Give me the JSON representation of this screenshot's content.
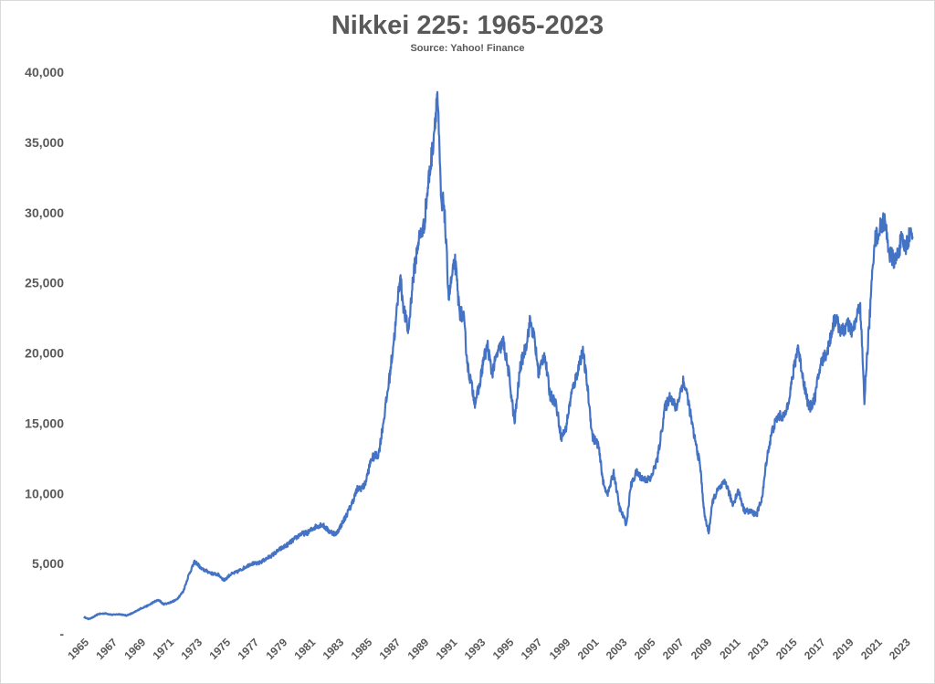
{
  "chart_data": {
    "type": "line",
    "title": "Nikkei 225: 1965-2023",
    "subtitle": "Source: Yahoo! Finance",
    "xlabel": "",
    "ylabel": "",
    "xlim": [
      1965,
      2023.6
    ],
    "ylim": [
      0,
      40000
    ],
    "yticks": [
      0,
      5000,
      10000,
      15000,
      20000,
      25000,
      30000,
      35000,
      40000
    ],
    "ytick_labels": [
      "-",
      "5,000",
      "10,000",
      "15,000",
      "20,000",
      "25,000",
      "30,000",
      "35,000",
      "40,000"
    ],
    "xtick_labels": [
      "1965",
      "1967",
      "1969",
      "1971",
      "1973",
      "1975",
      "1977",
      "1979",
      "1981",
      "1983",
      "1985",
      "1987",
      "1989",
      "1991",
      "1993",
      "1995",
      "1997",
      "1999",
      "2001",
      "2003",
      "2005",
      "2007",
      "2009",
      "2011",
      "2013",
      "2015",
      "2017",
      "2019",
      "2021",
      "2023"
    ],
    "grid": false,
    "legend": "none",
    "line_color": "#4472c4",
    "series": [
      {
        "x": [
          1965.0,
          1965.3,
          1965.6,
          1966.0,
          1966.5,
          1967.0,
          1967.5,
          1968.0,
          1968.5,
          1969.0,
          1969.5,
          1970.0,
          1970.3,
          1970.6,
          1971.0,
          1971.5,
          1972.0,
          1972.4,
          1972.8,
          1973.0,
          1973.3,
          1973.6,
          1974.0,
          1974.5,
          1974.9,
          1975.3,
          1975.8,
          1976.3,
          1976.8,
          1977.3,
          1977.8,
          1978.3,
          1978.8,
          1979.3,
          1979.8,
          1980.3,
          1980.8,
          1981.3,
          1981.8,
          1982.3,
          1982.8,
          1983.3,
          1983.8,
          1984.3,
          1984.8,
          1985.3,
          1985.8,
          1986.2,
          1986.6,
          1987.0,
          1987.3,
          1987.6,
          1987.9,
          1988.2,
          1988.6,
          1989.0,
          1989.3,
          1989.6,
          1989.8,
          1989.95,
          1990.1,
          1990.25,
          1990.4,
          1990.6,
          1990.75,
          1991.0,
          1991.2,
          1991.5,
          1991.8,
          1992.1,
          1992.4,
          1992.6,
          1992.9,
          1993.2,
          1993.5,
          1993.8,
          1994.2,
          1994.6,
          1995.0,
          1995.4,
          1995.8,
          1996.2,
          1996.5,
          1996.8,
          1997.1,
          1997.5,
          1997.9,
          1998.3,
          1998.7,
          1999.0,
          1999.4,
          1999.8,
          2000.2,
          2000.5,
          2000.9,
          2001.3,
          2001.7,
          2002.0,
          2002.4,
          2002.8,
          2003.3,
          2003.6,
          2004.0,
          2004.5,
          2005.0,
          2005.5,
          2006.0,
          2006.4,
          2006.8,
          2007.3,
          2007.6,
          2008.0,
          2008.5,
          2008.8,
          2009.1,
          2009.4,
          2009.8,
          2010.3,
          2010.8,
          2011.2,
          2011.6,
          2012.0,
          2012.5,
          2012.9,
          2013.2,
          2013.6,
          2014.0,
          2014.5,
          2014.9,
          2015.4,
          2015.8,
          2016.2,
          2016.6,
          2017.0,
          2017.5,
          2018.0,
          2018.5,
          2018.9,
          2019.3,
          2019.8,
          2020.1,
          2020.2,
          2020.5,
          2020.8,
          2021.1,
          2021.5,
          2021.9,
          2022.3,
          2022.7,
          2023.0,
          2023.3,
          2023.5
        ],
        "values": [
          1200,
          1050,
          1150,
          1400,
          1450,
          1350,
          1400,
          1300,
          1500,
          1800,
          2000,
          2300,
          2400,
          2100,
          2200,
          2400,
          3000,
          4200,
          5100,
          5000,
          4600,
          4500,
          4300,
          4200,
          3800,
          4200,
          4400,
          4700,
          5000,
          5000,
          5300,
          5600,
          6000,
          6300,
          6700,
          7100,
          7200,
          7600,
          7800,
          7300,
          7100,
          8000,
          9000,
          10300,
          10500,
          12500,
          12800,
          15500,
          18500,
          22000,
          25500,
          23000,
          21500,
          25000,
          28000,
          29000,
          32000,
          34500,
          36800,
          38600,
          34000,
          30000,
          31000,
          27000,
          24000,
          25500,
          26500,
          23000,
          22500,
          19000,
          17500,
          16500,
          17500,
          19500,
          20500,
          18500,
          20000,
          20800,
          18500,
          15000,
          19000,
          20500,
          22300,
          21000,
          18500,
          20000,
          17000,
          16500,
          14000,
          14500,
          17000,
          18500,
          20200,
          18000,
          14000,
          13500,
          10500,
          10000,
          11500,
          9000,
          7800,
          10500,
          11500,
          11000,
          11000,
          12500,
          16000,
          17000,
          16000,
          18000,
          17000,
          14500,
          12000,
          8500,
          7200,
          9500,
          10300,
          10800,
          9200,
          10200,
          8800,
          8700,
          8500,
          9800,
          12500,
          14500,
          15500,
          15500,
          17500,
          20500,
          18000,
          16000,
          16800,
          19200,
          20200,
          22500,
          21500,
          22000,
          21500,
          23500,
          16500,
          18500,
          23000,
          28000,
          28600,
          29500,
          27000,
          26500,
          28000,
          27500,
          28500,
          28300
        ]
      }
    ]
  }
}
